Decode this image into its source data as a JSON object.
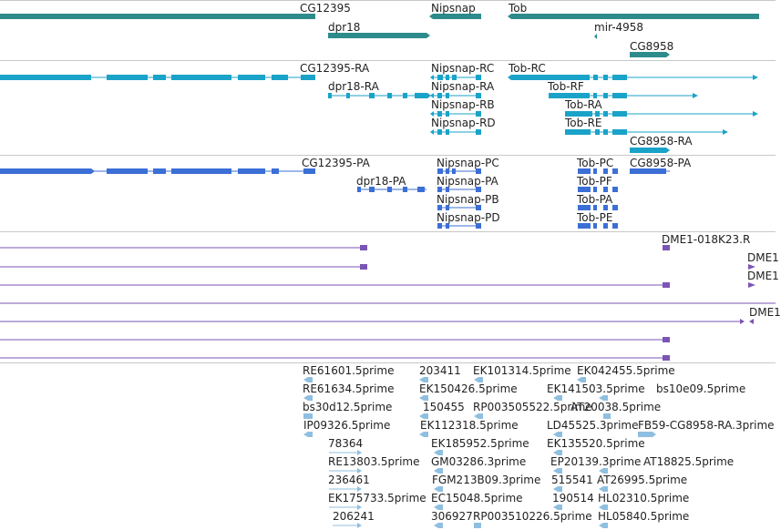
{
  "colors": {
    "gene": "#2e8b8b",
    "transcript": "#1aa3c8",
    "protein": "#3b6fd6",
    "clone": "#7b55b5",
    "est": "#8fbfe0",
    "separator": "#c8c8c8"
  },
  "genes_track": {
    "labels": [
      "CG12395",
      "Nipsnap",
      "Tob",
      "dpr18",
      "mir-4958",
      "CG8958"
    ]
  },
  "transcripts_track": {
    "labels": [
      "CG12395-RA",
      "Nipsnap-RC",
      "Tob-RC",
      "dpr18-RA",
      "Nipsnap-RA",
      "Tob-RF",
      "Nipsnap-RB",
      "Tob-RA",
      "Nipsnap-RD",
      "Tob-RE",
      "CG8958-RA"
    ]
  },
  "proteins_track": {
    "labels": [
      "CG12395-PA",
      "Nipsnap-PC",
      "Tob-PC",
      "CG8958-PA",
      "dpr18-PA",
      "Nipsnap-PA",
      "Tob-PF",
      "Nipsnap-PB",
      "Tob-PA",
      "Nipsnap-PD",
      "Tob-PE"
    ]
  },
  "clones_track": {
    "labels": [
      "DME1-018K23.R",
      "DME1",
      "DME1",
      "DME1"
    ]
  },
  "est_track": {
    "labels": [
      "RE61601.5prime",
      "203411",
      "EK101314.5prime",
      "EK042455.5prime",
      "RE61634.5prime",
      "EK150426.5prime",
      "EK141503.5prime",
      "bs10e09.5prime",
      "bs30d12.5prime",
      "150455",
      "RP003505522.5prime",
      "AT20038.5prime",
      "IP09326.5prime",
      "EK112318.5prime",
      "LD45525.3prime",
      "FB59-CG8958-RA.3prime",
      "78364",
      "EK185952.5prime",
      "EK135520.5prime",
      "RE13803.5prime",
      "GM03286.3prime",
      "EP20139.3prime",
      "AT18825.5prime",
      "236461",
      "FGM213B09.3prime",
      "515541",
      "AT26995.5prime",
      "EK175733.5prime",
      "EC15048.5prime",
      "190514",
      "HL02310.5prime",
      "206241",
      "306927",
      "RP003510226.5prime",
      "HL05840.5prime"
    ]
  }
}
